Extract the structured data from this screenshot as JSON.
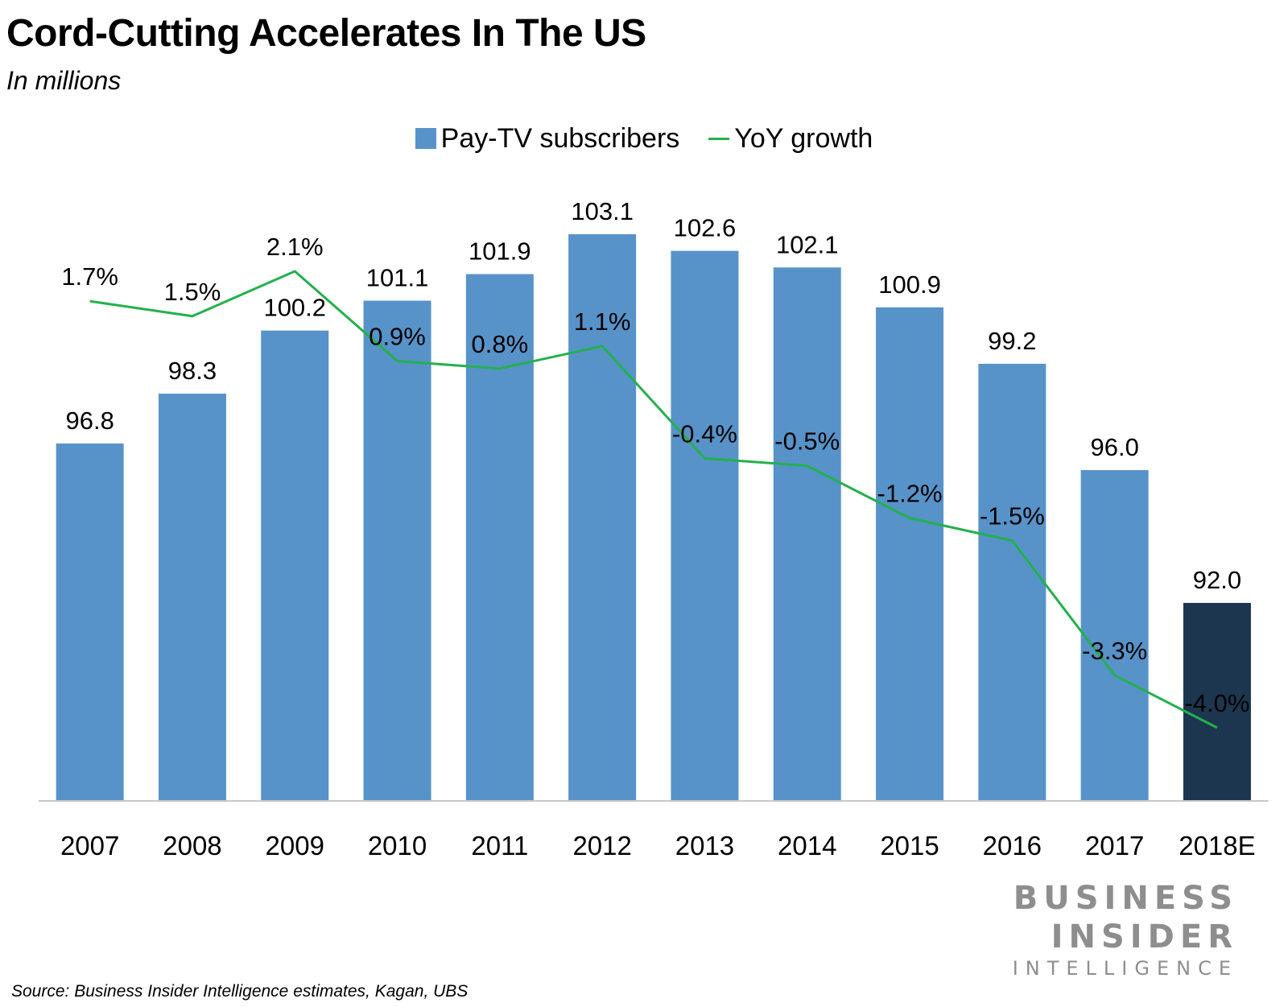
{
  "title": "Cord-Cutting Accelerates In The US",
  "subtitle": "In millions",
  "legend": {
    "bars_label": "Pay-TV subscribers",
    "line_label": "YoY growth"
  },
  "colors": {
    "bar": "#5793c9",
    "bar_estimate": "#1d3650",
    "line": "#22b14c",
    "axis": "#c8c8c8"
  },
  "chart_data": {
    "type": "bar",
    "categories": [
      "2007",
      "2008",
      "2009",
      "2010",
      "2011",
      "2012",
      "2013",
      "2014",
      "2015",
      "2016",
      "2017",
      "2018E"
    ],
    "series": [
      {
        "name": "Pay-TV subscribers",
        "type": "bar",
        "values": [
          96.8,
          98.3,
          100.2,
          101.1,
          101.9,
          103.1,
          102.6,
          102.1,
          100.9,
          99.2,
          96.0,
          92.0
        ],
        "labels": [
          "96.8",
          "98.3",
          "100.2",
          "101.1",
          "101.9",
          "103.1",
          "102.6",
          "102.1",
          "100.9",
          "99.2",
          "96.0",
          "92.0"
        ]
      },
      {
        "name": "YoY growth",
        "type": "line",
        "values": [
          1.7,
          1.5,
          2.1,
          0.9,
          0.8,
          1.1,
          -0.4,
          -0.5,
          -1.2,
          -1.5,
          -3.3,
          -4.0
        ],
        "labels": [
          "1.7%",
          "1.5%",
          "2.1%",
          "0.9%",
          "0.8%",
          "1.1%",
          "-0.4%",
          "-0.5%",
          "-1.2%",
          "-1.5%",
          "-3.3%",
          "-4.0%"
        ]
      }
    ],
    "estimate_category": "2018E",
    "legend_position": "top",
    "grid": false
  },
  "logo": {
    "line1": "BUSINESS",
    "line2": "INSIDER",
    "line3": "INTELLIGENCE"
  },
  "source": "Source: Business Insider Intelligence estimates, Kagan, UBS"
}
